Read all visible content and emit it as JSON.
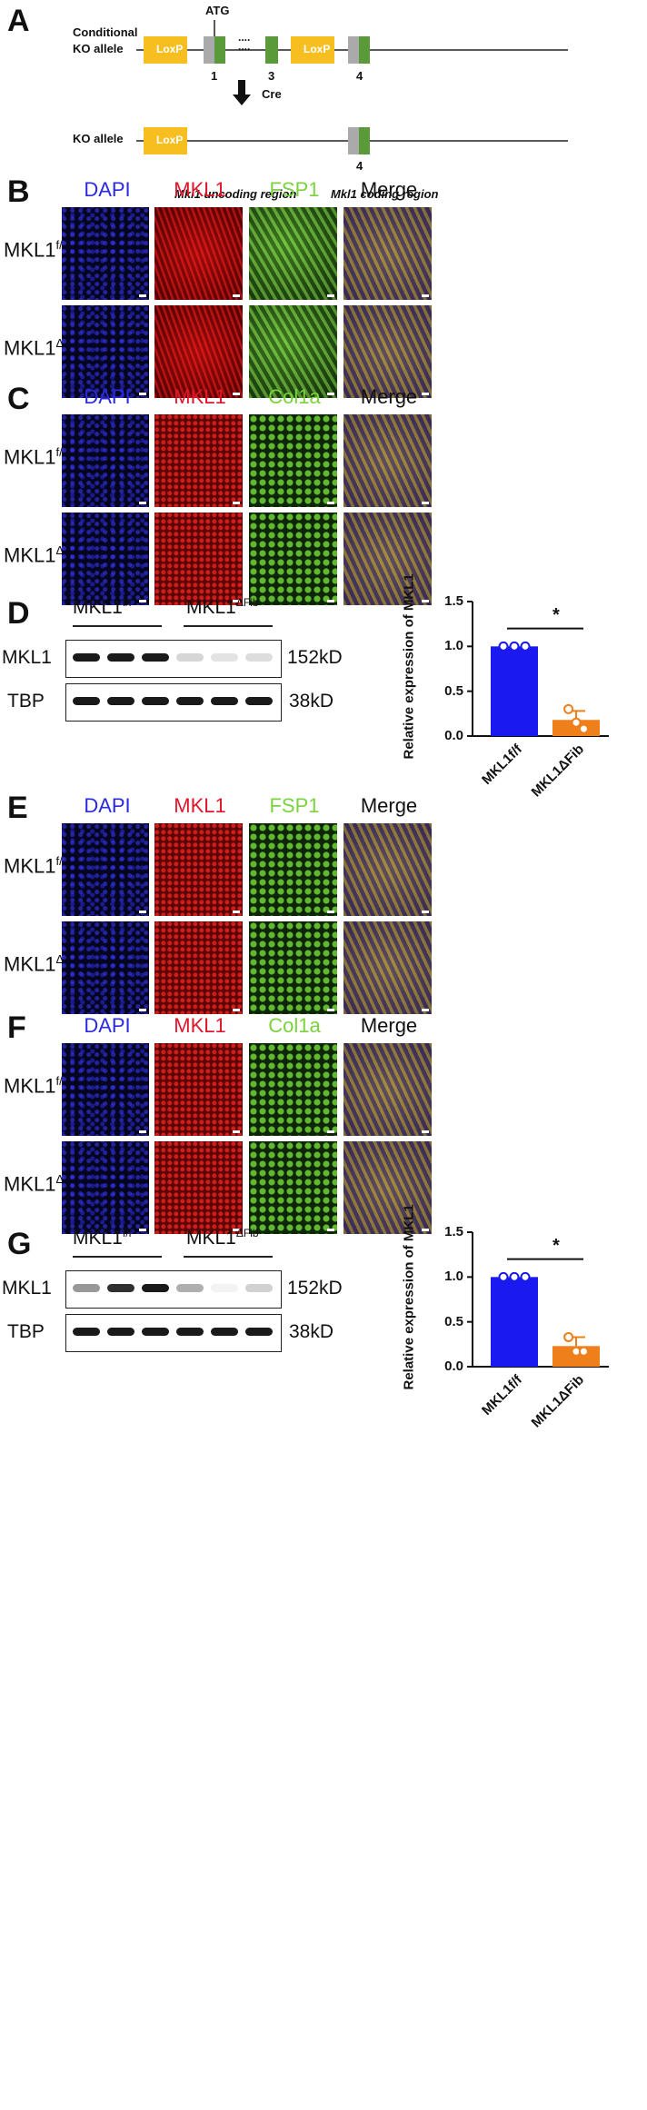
{
  "colors": {
    "loxp": "#f6be1e",
    "uncoding": "#aaaaaa",
    "coding": "#5a9a3a",
    "bar_ff": "#1a1af0",
    "bar_dfib": "#ef7f1a",
    "dapi_label": "#2a2ae0",
    "mkl1_label": "#e0162b",
    "green_label": "#7ad23c"
  },
  "panel_a": {
    "letter": "A",
    "cond_label_line1": "Conditional",
    "cond_label_line2": "KO allele",
    "loxp": "LoxP",
    "atg": "ATG",
    "exon1": "1",
    "exon3": "3",
    "exon4": "4",
    "dots": "....",
    "cre": "Cre",
    "ko_label": "KO allele",
    "ko_exon4": "4",
    "legend_uncoding": "Mkl1 uncoding region",
    "legend_coding": "Mkl1 coding region"
  },
  "if_panels": [
    {
      "letter": "B",
      "headers": [
        "DAPI",
        "MKL1",
        "FSP1",
        "Merge"
      ]
    },
    {
      "letter": "C",
      "headers": [
        "DAPI",
        "MKL1",
        "Col1a",
        "Merge"
      ]
    },
    {
      "letter": "E",
      "headers": [
        "DAPI",
        "MKL1",
        "FSP1",
        "Merge"
      ]
    },
    {
      "letter": "F",
      "headers": [
        "DAPI",
        "MKL1",
        "Col1a",
        "Merge"
      ]
    }
  ],
  "row_labels": {
    "base": "MKL1",
    "ff_sup": "f/f",
    "dfib_sup": "ΔFib"
  },
  "blots": [
    {
      "letter": "D",
      "group1": "MKL1",
      "group1_sup": "f/f",
      "group2": "MKL1",
      "group2_sup": "ΔFib",
      "row1_label": "MKL1",
      "row1_size": "152kD",
      "row2_label": "TBP",
      "row2_size": "38kD"
    },
    {
      "letter": "G",
      "group1": "MKL1",
      "group1_sup": "f/f",
      "group2": "MKL1",
      "group2_sup": "ΔFib",
      "row1_label": "MKL1",
      "row1_size": "152kD",
      "row2_label": "TBP",
      "row2_size": "38kD"
    }
  ],
  "chart_data": [
    {
      "type": "bar",
      "ylabel": "Relative expression of MKL1",
      "ylim": [
        0,
        1.5
      ],
      "yticks": [
        "0.0",
        "0.5",
        "1.0",
        "1.5"
      ],
      "categories": [
        "MKL1f/f",
        "MKL1ΔFib"
      ],
      "values": [
        1.0,
        0.18
      ],
      "error": [
        0.0,
        0.1
      ],
      "points": [
        [
          1.0,
          1.0,
          1.0
        ],
        [
          0.3,
          0.15,
          0.08
        ]
      ],
      "significance": "*"
    },
    {
      "type": "bar",
      "ylabel": "Relative expression of MKL1",
      "ylim": [
        0,
        1.5
      ],
      "yticks": [
        "0.0",
        "0.5",
        "1.0",
        "1.5"
      ],
      "categories": [
        "MKL1f/f",
        "MKL1ΔFib"
      ],
      "values": [
        1.0,
        0.23
      ],
      "error": [
        0.0,
        0.1
      ],
      "points": [
        [
          1.0,
          1.0,
          1.0
        ],
        [
          0.33,
          0.17,
          0.17
        ]
      ],
      "significance": "*"
    }
  ]
}
